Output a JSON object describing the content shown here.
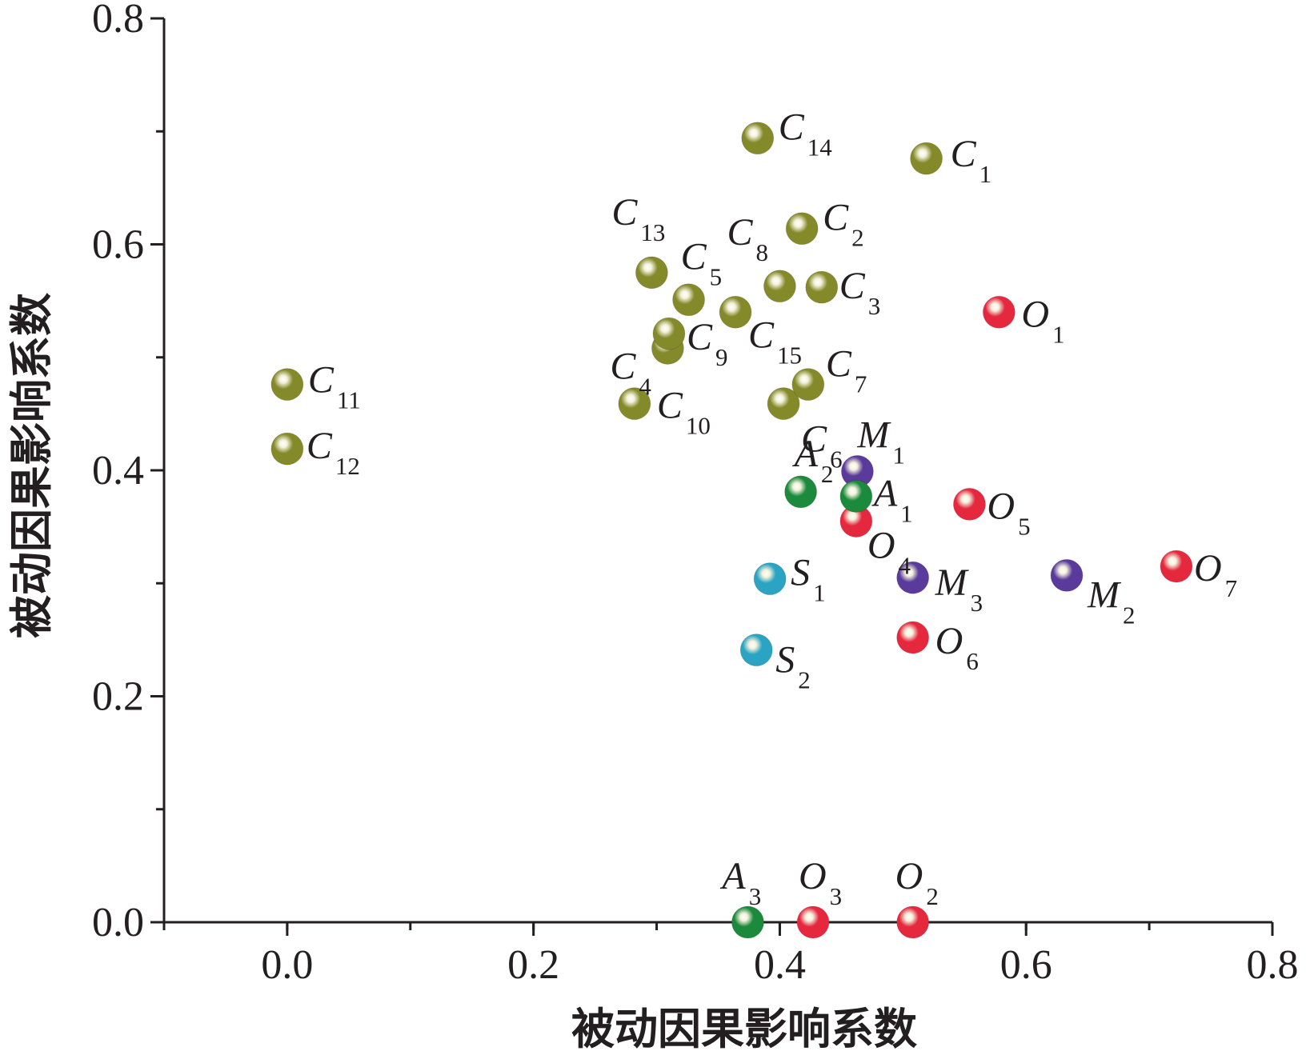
{
  "chart_data": {
    "type": "scatter",
    "xlabel": "被动因果影响系数",
    "ylabel": "被动因果影响系数",
    "xlim": [
      -0.1,
      0.8
    ],
    "ylim": [
      0,
      0.8
    ],
    "x_ticks": [
      "0.0",
      "0.2",
      "0.4",
      "0.6",
      "0.8"
    ],
    "y_ticks": [
      "0.0",
      "0.2",
      "0.4",
      "0.6",
      "0.8"
    ],
    "grid": false,
    "colors": {
      "C": "#848a2a",
      "O": "#e6283f",
      "M": "#5a3b9c",
      "A": "#1b8a3c",
      "S": "#2aa4c2"
    },
    "series": [
      {
        "group": "C",
        "points": [
          {
            "label": "C",
            "sub": "1",
            "x": 0.519,
            "y": 0.676
          },
          {
            "label": "C",
            "sub": "2",
            "x": 0.418,
            "y": 0.614
          },
          {
            "label": "C",
            "sub": "3",
            "x": 0.434,
            "y": 0.562
          },
          {
            "label": "C",
            "sub": "4",
            "x": 0.309,
            "y": 0.508
          },
          {
            "label": "C",
            "sub": "5",
            "x": 0.326,
            "y": 0.551
          },
          {
            "label": "C",
            "sub": "6",
            "x": 0.403,
            "y": 0.459
          },
          {
            "label": "C",
            "sub": "7",
            "x": 0.423,
            "y": 0.476
          },
          {
            "label": "C",
            "sub": "8",
            "x": 0.4,
            "y": 0.563
          },
          {
            "label": "C",
            "sub": "9",
            "x": 0.31,
            "y": 0.521
          },
          {
            "label": "C",
            "sub": "10",
            "x": 0.282,
            "y": 0.459
          },
          {
            "label": "C",
            "sub": "11",
            "x": 0.0,
            "y": 0.476
          },
          {
            "label": "C",
            "sub": "12",
            "x": 0.0,
            "y": 0.419
          },
          {
            "label": "C",
            "sub": "13",
            "x": 0.296,
            "y": 0.575
          },
          {
            "label": "C",
            "sub": "14",
            "x": 0.382,
            "y": 0.694
          },
          {
            "label": "C",
            "sub": "15",
            "x": 0.364,
            "y": 0.54
          }
        ]
      },
      {
        "group": "O",
        "points": [
          {
            "label": "O",
            "sub": "1",
            "x": 0.578,
            "y": 0.54
          },
          {
            "label": "O",
            "sub": "2",
            "x": 0.508,
            "y": 0.0
          },
          {
            "label": "O",
            "sub": "3",
            "x": 0.427,
            "y": 0.0
          },
          {
            "label": "O",
            "sub": "4",
            "x": 0.462,
            "y": 0.355
          },
          {
            "label": "O",
            "sub": "5",
            "x": 0.554,
            "y": 0.37
          },
          {
            "label": "O",
            "sub": "6",
            "x": 0.508,
            "y": 0.252
          },
          {
            "label": "O",
            "sub": "7",
            "x": 0.722,
            "y": 0.315
          }
        ]
      },
      {
        "group": "M",
        "points": [
          {
            "label": "M",
            "sub": "1",
            "x": 0.463,
            "y": 0.399
          },
          {
            "label": "M",
            "sub": "2",
            "x": 0.633,
            "y": 0.307
          },
          {
            "label": "M",
            "sub": "3",
            "x": 0.508,
            "y": 0.305
          }
        ]
      },
      {
        "group": "A",
        "points": [
          {
            "label": "A",
            "sub": "1",
            "x": 0.462,
            "y": 0.377
          },
          {
            "label": "A",
            "sub": "2",
            "x": 0.417,
            "y": 0.381
          },
          {
            "label": "A",
            "sub": "3",
            "x": 0.374,
            "y": 0.0
          }
        ]
      },
      {
        "group": "S",
        "points": [
          {
            "label": "S",
            "sub": "1",
            "x": 0.392,
            "y": 0.304
          },
          {
            "label": "S",
            "sub": "2",
            "x": 0.381,
            "y": 0.241
          }
        ]
      }
    ]
  }
}
